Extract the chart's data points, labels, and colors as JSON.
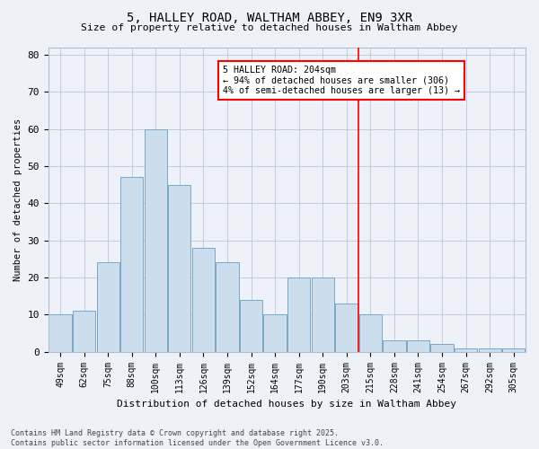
{
  "title": "5, HALLEY ROAD, WALTHAM ABBEY, EN9 3XR",
  "subtitle": "Size of property relative to detached houses in Waltham Abbey",
  "xlabel": "Distribution of detached houses by size in Waltham Abbey",
  "ylabel": "Number of detached properties",
  "categories": [
    "49sqm",
    "62sqm",
    "75sqm",
    "88sqm",
    "100sqm",
    "113sqm",
    "126sqm",
    "139sqm",
    "152sqm",
    "164sqm",
    "177sqm",
    "190sqm",
    "203sqm",
    "215sqm",
    "228sqm",
    "241sqm",
    "254sqm",
    "267sqm",
    "292sqm",
    "305sqm"
  ],
  "bar_heights": [
    10,
    11,
    24,
    47,
    60,
    45,
    28,
    24,
    14,
    10,
    20,
    20,
    13,
    10,
    3,
    3,
    2,
    1,
    1,
    1
  ],
  "bar_color": "#ccdded",
  "bar_edge_color": "#7aa8c8",
  "ylim": [
    0,
    82
  ],
  "yticks": [
    0,
    10,
    20,
    30,
    40,
    50,
    60,
    70,
    80
  ],
  "annotation_text": "5 HALLEY ROAD: 204sqm\n← 94% of detached houses are smaller (306)\n4% of semi-detached houses are larger (13) →",
  "vline_x_index": 12.5,
  "footer": "Contains HM Land Registry data © Crown copyright and database right 2025.\nContains public sector information licensed under the Open Government Licence v3.0.",
  "bg_color": "#eef2f8",
  "grid_color": "#b0bfd0"
}
